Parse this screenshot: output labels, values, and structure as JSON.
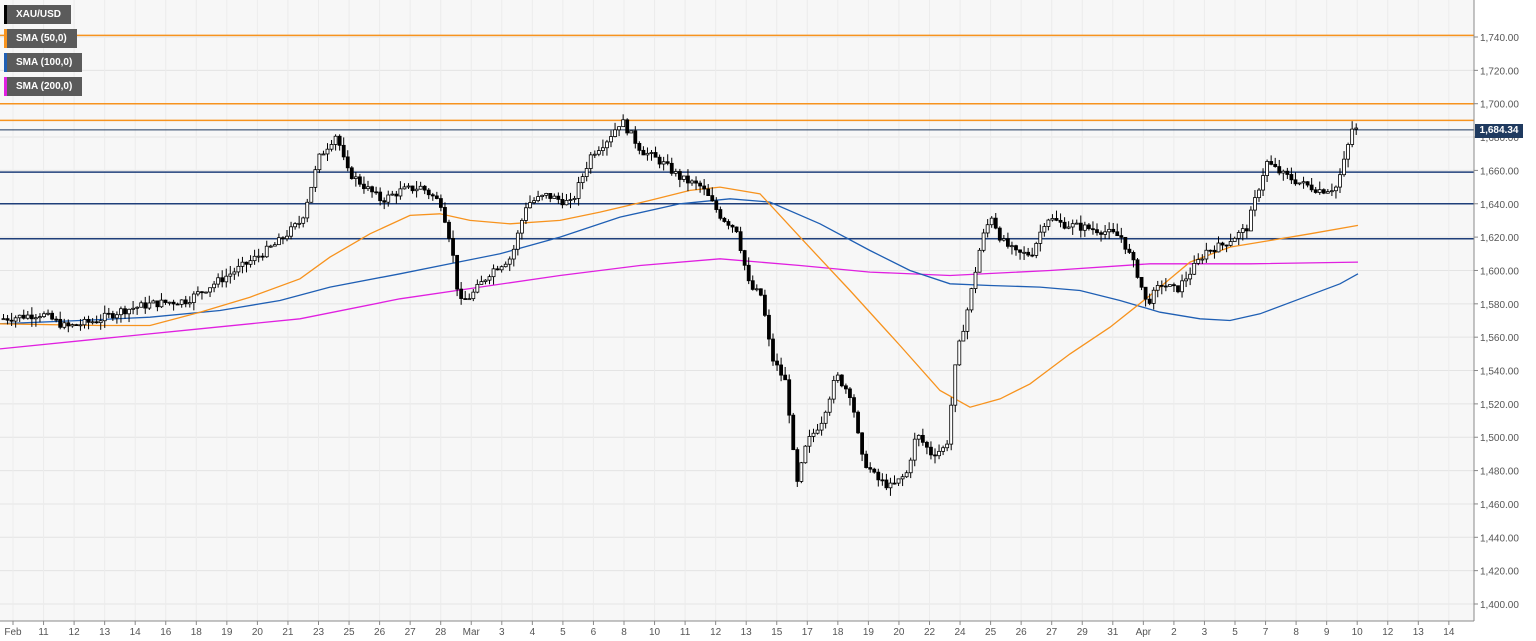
{
  "chart_data": {
    "type": "candlestick",
    "instrument": "XAU/USD",
    "legend": [
      {
        "label": "XAU/USD",
        "color": "#000000"
      },
      {
        "label": "SMA (50,0)",
        "color": "#f7931e"
      },
      {
        "label": "SMA (100,0)",
        "color": "#1f5fb4"
      },
      {
        "label": "SMA (200,0)",
        "color": "#e020e0"
      }
    ],
    "last_price_label": "1,684.34",
    "last_price": 1684.34,
    "y_range": [
      1390,
      1760
    ],
    "y_ticks": [
      1400,
      1420,
      1440,
      1460,
      1480,
      1500,
      1520,
      1540,
      1560,
      1580,
      1600,
      1620,
      1640,
      1660,
      1680,
      1700,
      1720,
      1740
    ],
    "y_tick_labels": [
      "1,400.00",
      "1,420.00",
      "1,440.00",
      "1,460.00",
      "1,480.00",
      "1,500.00",
      "1,520.00",
      "1,540.00",
      "1,560.00",
      "1,580.00",
      "1,600.00",
      "1,620.00",
      "1,640.00",
      "1,660.00",
      "1,680.00",
      "1,700.00",
      "1,720.00",
      "1,740.00"
    ],
    "x_labels": [
      "Feb",
      "11",
      "12",
      "13",
      "14",
      "16",
      "18",
      "19",
      "20",
      "21",
      "23",
      "25",
      "26",
      "27",
      "28",
      "Mar",
      "3",
      "4",
      "5",
      "6",
      "8",
      "10",
      "11",
      "12",
      "13",
      "15",
      "17",
      "18",
      "19",
      "20",
      "22",
      "24",
      "25",
      "26",
      "27",
      "29",
      "31",
      "Apr",
      "2",
      "3",
      "5",
      "7",
      "8",
      "9",
      "10",
      "12",
      "13",
      "14"
    ],
    "resistance_levels": [
      1741,
      1700,
      1690
    ],
    "support_levels": [
      1659,
      1640,
      1619
    ],
    "resistance_color": "#f7931e",
    "support_color": "#1f3f7a",
    "close_path": [
      [
        0,
        1571
      ],
      [
        40,
        1574
      ],
      [
        65,
        1566
      ],
      [
        95,
        1570
      ],
      [
        120,
        1576
      ],
      [
        150,
        1580
      ],
      [
        185,
        1582
      ],
      [
        215,
        1593
      ],
      [
        245,
        1604
      ],
      [
        275,
        1616
      ],
      [
        300,
        1630
      ],
      [
        318,
        1668
      ],
      [
        335,
        1682
      ],
      [
        345,
        1660
      ],
      [
        360,
        1652
      ],
      [
        380,
        1642
      ],
      [
        400,
        1648
      ],
      [
        420,
        1650
      ],
      [
        440,
        1640
      ],
      [
        450,
        1615
      ],
      [
        458,
        1580
      ],
      [
        470,
        1585
      ],
      [
        490,
        1600
      ],
      [
        510,
        1608
      ],
      [
        525,
        1640
      ],
      [
        545,
        1645
      ],
      [
        570,
        1640
      ],
      [
        590,
        1670
      ],
      [
        605,
        1678
      ],
      [
        620,
        1690
      ],
      [
        640,
        1672
      ],
      [
        660,
        1665
      ],
      [
        680,
        1655
      ],
      [
        700,
        1650
      ],
      [
        720,
        1632
      ],
      [
        735,
        1625
      ],
      [
        748,
        1590
      ],
      [
        760,
        1585
      ],
      [
        770,
        1548
      ],
      [
        785,
        1532
      ],
      [
        795,
        1470
      ],
      [
        805,
        1496
      ],
      [
        820,
        1510
      ],
      [
        835,
        1537
      ],
      [
        850,
        1525
      ],
      [
        860,
        1488
      ],
      [
        875,
        1475
      ],
      [
        890,
        1470
      ],
      [
        905,
        1478
      ],
      [
        915,
        1502
      ],
      [
        930,
        1490
      ],
      [
        945,
        1494
      ],
      [
        955,
        1548
      ],
      [
        968,
        1582
      ],
      [
        980,
        1618
      ],
      [
        990,
        1633
      ],
      [
        1000,
        1618
      ],
      [
        1015,
        1610
      ],
      [
        1030,
        1610
      ],
      [
        1045,
        1632
      ],
      [
        1060,
        1628
      ],
      [
        1080,
        1626
      ],
      [
        1100,
        1624
      ],
      [
        1120,
        1620
      ],
      [
        1135,
        1600
      ],
      [
        1145,
        1580
      ],
      [
        1160,
        1592
      ],
      [
        1175,
        1588
      ],
      [
        1190,
        1600
      ],
      [
        1205,
        1612
      ],
      [
        1220,
        1615
      ],
      [
        1245,
        1625
      ],
      [
        1265,
        1665
      ],
      [
        1280,
        1658
      ],
      [
        1300,
        1652
      ],
      [
        1320,
        1648
      ],
      [
        1335,
        1650
      ],
      [
        1345,
        1670
      ],
      [
        1350,
        1685
      ],
      [
        1358,
        1684
      ]
    ],
    "sma50_path": [
      [
        0,
        1568
      ],
      [
        100,
        1567
      ],
      [
        150,
        1567
      ],
      [
        200,
        1575
      ],
      [
        250,
        1584
      ],
      [
        300,
        1595
      ],
      [
        330,
        1608
      ],
      [
        370,
        1622
      ],
      [
        410,
        1633
      ],
      [
        440,
        1634
      ],
      [
        470,
        1630
      ],
      [
        510,
        1628
      ],
      [
        560,
        1630
      ],
      [
        600,
        1635
      ],
      [
        650,
        1642
      ],
      [
        690,
        1648
      ],
      [
        720,
        1650
      ],
      [
        760,
        1646
      ],
      [
        800,
        1620
      ],
      [
        850,
        1588
      ],
      [
        900,
        1555
      ],
      [
        940,
        1528
      ],
      [
        970,
        1518
      ],
      [
        1000,
        1523
      ],
      [
        1030,
        1532
      ],
      [
        1070,
        1550
      ],
      [
        1110,
        1566
      ],
      [
        1150,
        1585
      ],
      [
        1190,
        1605
      ],
      [
        1230,
        1614
      ],
      [
        1270,
        1618
      ],
      [
        1310,
        1622
      ],
      [
        1358,
        1627
      ]
    ],
    "sma100_path": [
      [
        0,
        1568
      ],
      [
        80,
        1570
      ],
      [
        150,
        1572
      ],
      [
        220,
        1576
      ],
      [
        280,
        1582
      ],
      [
        330,
        1590
      ],
      [
        400,
        1598
      ],
      [
        450,
        1604
      ],
      [
        500,
        1610
      ],
      [
        560,
        1620
      ],
      [
        620,
        1632
      ],
      [
        680,
        1640
      ],
      [
        730,
        1643
      ],
      [
        770,
        1641
      ],
      [
        820,
        1628
      ],
      [
        870,
        1612
      ],
      [
        910,
        1600
      ],
      [
        950,
        1592
      ],
      [
        990,
        1591
      ],
      [
        1040,
        1590
      ],
      [
        1080,
        1588
      ],
      [
        1120,
        1582
      ],
      [
        1160,
        1575
      ],
      [
        1200,
        1571
      ],
      [
        1230,
        1570
      ],
      [
        1260,
        1574
      ],
      [
        1300,
        1583
      ],
      [
        1340,
        1592
      ],
      [
        1358,
        1598
      ]
    ],
    "sma200_path": [
      [
        0,
        1553
      ],
      [
        100,
        1559
      ],
      [
        200,
        1565
      ],
      [
        300,
        1571
      ],
      [
        400,
        1583
      ],
      [
        480,
        1590
      ],
      [
        560,
        1597
      ],
      [
        640,
        1603
      ],
      [
        720,
        1607
      ],
      [
        800,
        1603
      ],
      [
        870,
        1599
      ],
      [
        950,
        1597
      ],
      [
        1050,
        1600
      ],
      [
        1150,
        1604
      ],
      [
        1250,
        1604
      ],
      [
        1358,
        1605
      ]
    ]
  }
}
